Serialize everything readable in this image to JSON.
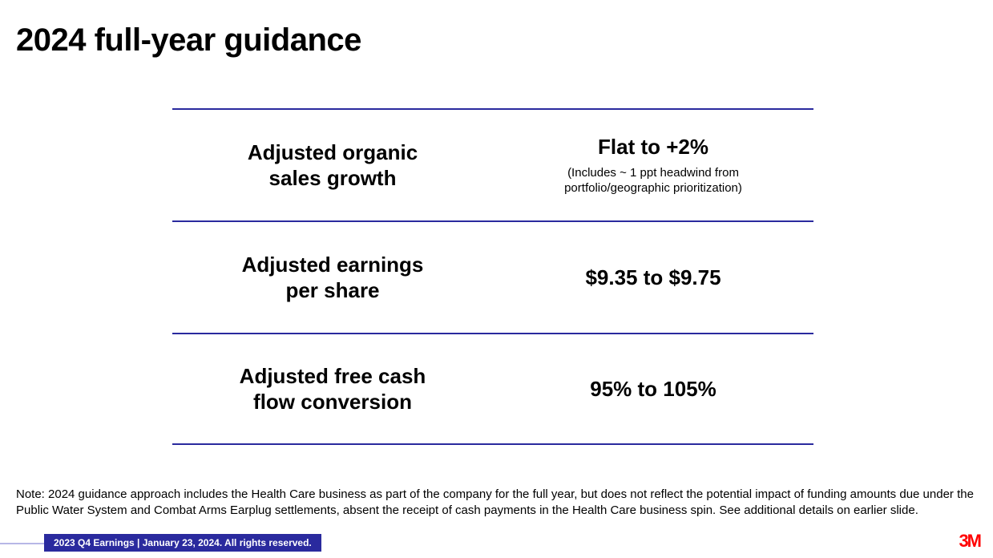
{
  "title": "2024 full-year guidance",
  "rows": [
    {
      "label": "Adjusted organic\nsales growth",
      "value": "Flat to +2%",
      "sub": "(Includes ~ 1 ppt headwind from\nportfolio/geographic prioritization)"
    },
    {
      "label": "Adjusted earnings\nper share",
      "value": "$9.35 to $9.75",
      "sub": ""
    },
    {
      "label": "Adjusted free cash\nflow conversion",
      "value": "95% to 105%",
      "sub": ""
    }
  ],
  "note": "Note: 2024 guidance approach includes the Health Care business as part of the company for the full year, but does not reflect the potential impact of funding amounts due under the Public Water System and Combat Arms Earplug settlements, absent the receipt of cash payments in the Health Care business spin. See additional details on earlier slide.",
  "footer": "2023 Q4 Earnings | January 23, 2024. All rights reserved.",
  "logo": "3M",
  "style": {
    "border_color": "#2a2a9e",
    "background": "#ffffff",
    "title_fontsize": 40,
    "metric_fontsize": 26,
    "sub_fontsize": 15,
    "note_fontsize": 15,
    "footer_fontsize": 12,
    "logo_color": "#ff0000"
  }
}
